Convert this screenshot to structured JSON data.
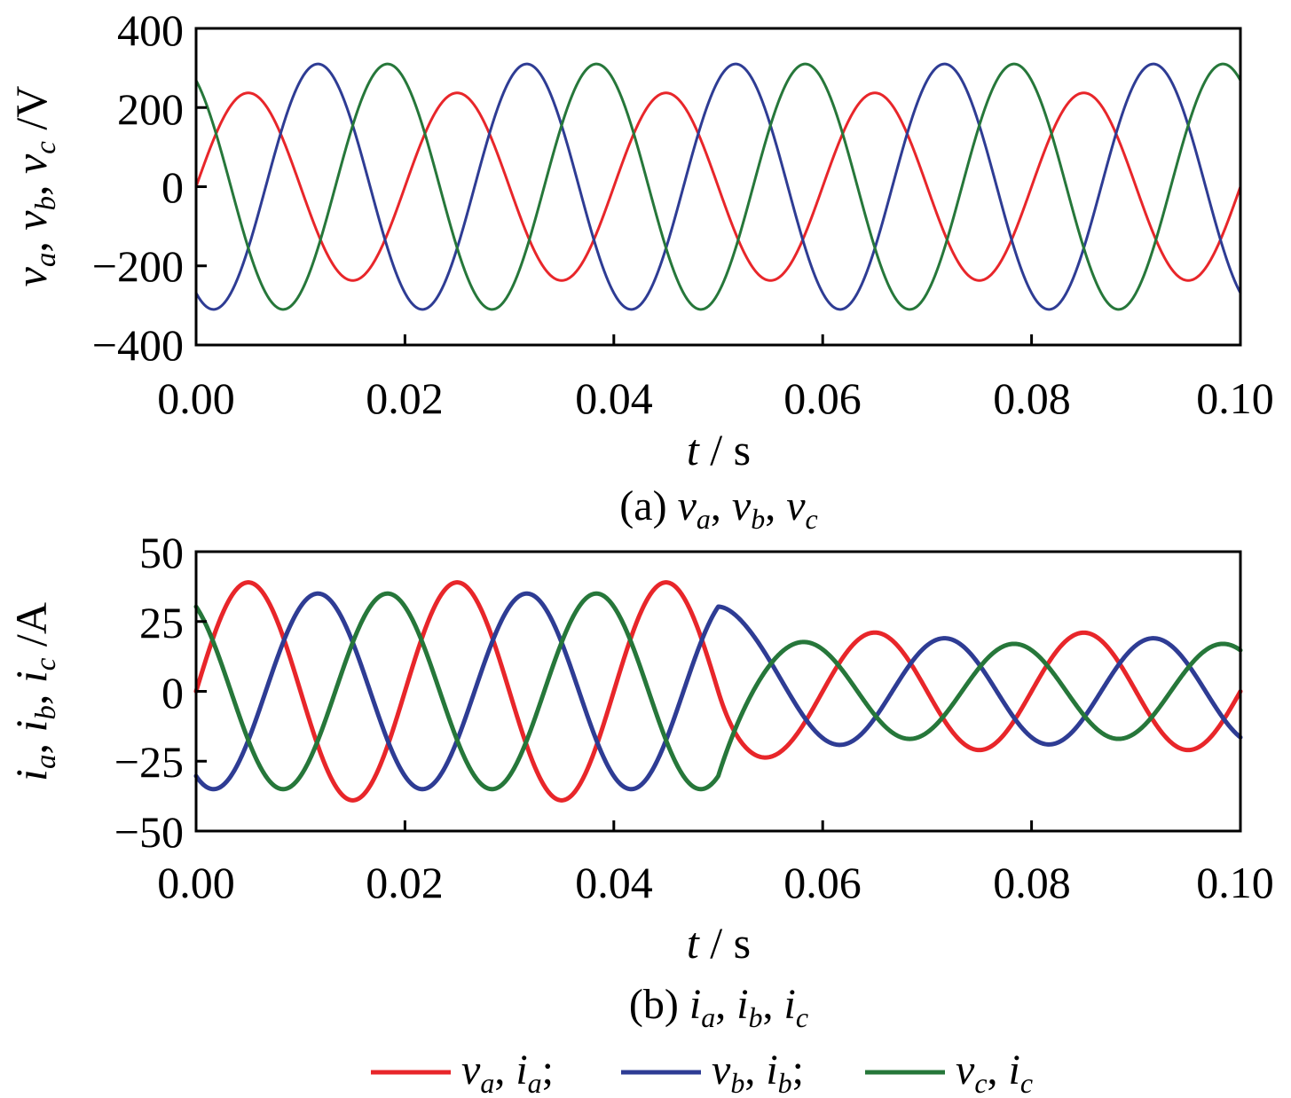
{
  "chart_data": [
    {
      "type": "line",
      "panel": "a",
      "caption": "(a) va, vb, vc",
      "xlabel": "t / s",
      "ylabel": "va, vb, vc /V",
      "xlim": [
        0,
        0.1
      ],
      "ylim": [
        -400,
        400
      ],
      "xticks": [
        "0.00",
        "0.02",
        "0.04",
        "0.06",
        "0.08",
        "0.10"
      ],
      "yticks": [
        "400",
        "200",
        "0",
        "−200",
        "−400"
      ],
      "frequency_hz": 50,
      "series": [
        {
          "name": "va",
          "color": "#e8262a",
          "amplitude": 237,
          "phase_deg": 0
        },
        {
          "name": "vb",
          "color": "#2e3c94",
          "amplitude": 310,
          "phase_deg": -120
        },
        {
          "name": "vc",
          "color": "#26773a",
          "amplitude": 310,
          "phase_deg": 120
        }
      ]
    },
    {
      "type": "line",
      "panel": "b",
      "caption": "(b) ia, ib, ic",
      "xlabel": "t / s",
      "ylabel": "ia, ib, ic /A",
      "xlim": [
        0,
        0.1
      ],
      "ylim": [
        -50,
        50
      ],
      "xticks": [
        "0.00",
        "0.02",
        "0.04",
        "0.06",
        "0.08",
        "0.10"
      ],
      "yticks": [
        "50",
        "25",
        "0",
        "−25",
        "−50"
      ],
      "frequency_hz": 50,
      "step_time": 0.05,
      "series": [
        {
          "name": "ia",
          "color": "#e8262a",
          "amplitude_before": 39,
          "amplitude_after": 21,
          "phase_deg": 0
        },
        {
          "name": "ib",
          "color": "#2e3c94",
          "amplitude_before": 35,
          "amplitude_after": 19,
          "phase_deg": -120
        },
        {
          "name": "ic",
          "color": "#26773a",
          "amplitude_before": 35,
          "amplitude_after": 17,
          "phase_deg": 120
        }
      ]
    }
  ],
  "legend": {
    "placement": "bottom",
    "entries": [
      {
        "label": "va, ia;",
        "color": "#e8262a"
      },
      {
        "label": "vb, ib;",
        "color": "#2e3c94"
      },
      {
        "label": "vc, ic",
        "color": "#26773a"
      }
    ]
  }
}
